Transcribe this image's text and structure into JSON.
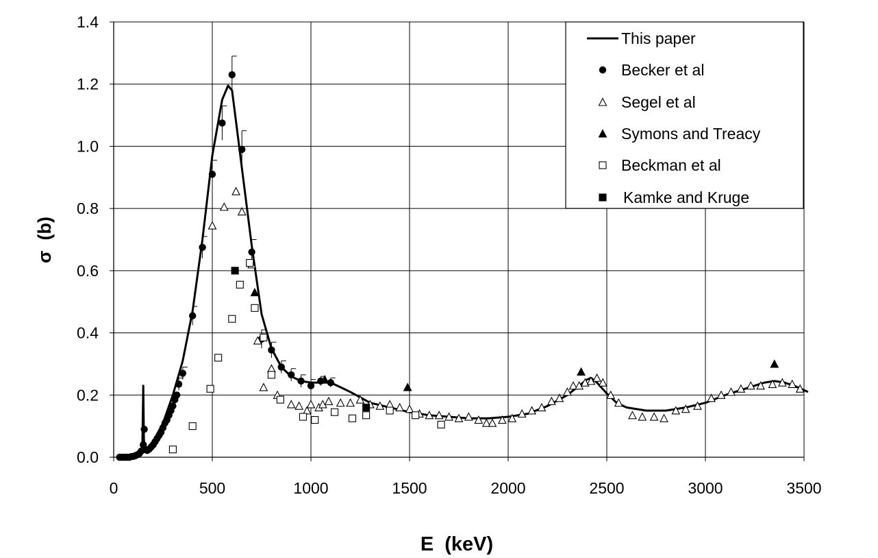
{
  "chart_data": {
    "type": "scatter",
    "title": "",
    "xlabel": "E  (keV)",
    "ylabel": "σ  (b)",
    "xlim": [
      0,
      3500
    ],
    "ylim": [
      0,
      1.4
    ],
    "xticks": [
      0,
      500,
      1000,
      1500,
      2000,
      2500,
      3000,
      3500
    ],
    "xtick_labels": [
      "0",
      "500",
      "1000",
      "1500",
      "2000",
      "2500",
      "3000",
      "3500"
    ],
    "yticks": [
      0,
      0.2,
      0.4,
      0.6,
      0.8,
      1.0,
      1.2,
      1.4
    ],
    "ytick_labels": [
      "0.0",
      "0.2",
      "0.4",
      "0.6",
      "0.8",
      "1.0",
      "1.2",
      "1.4"
    ],
    "grid": true,
    "legend_position": "top-right",
    "series": [
      {
        "name": "This paper",
        "kind": "line",
        "color": "#000000",
        "x": [
          20,
          60,
          100,
          120,
          140,
          145,
          150,
          153,
          156,
          160,
          180,
          200,
          250,
          300,
          350,
          400,
          450,
          500,
          550,
          580,
          600,
          620,
          650,
          700,
          750,
          800,
          850,
          900,
          950,
          1000,
          1050,
          1100,
          1150,
          1200,
          1300,
          1400,
          1500,
          1600,
          1700,
          1800,
          1900,
          2000,
          2100,
          2200,
          2300,
          2350,
          2400,
          2420,
          2450,
          2500,
          2550,
          2600,
          2700,
          2800,
          2900,
          3000,
          3100,
          3200,
          3300,
          3350,
          3400,
          3450,
          3520
        ],
        "y": [
          0.0,
          0.0,
          0.003,
          0.008,
          0.015,
          0.03,
          0.23,
          0.06,
          0.025,
          0.022,
          0.03,
          0.05,
          0.11,
          0.2,
          0.31,
          0.47,
          0.7,
          0.97,
          1.15,
          1.195,
          1.18,
          1.08,
          0.93,
          0.68,
          0.46,
          0.35,
          0.29,
          0.26,
          0.245,
          0.24,
          0.24,
          0.24,
          0.225,
          0.21,
          0.175,
          0.16,
          0.145,
          0.135,
          0.13,
          0.125,
          0.125,
          0.13,
          0.14,
          0.165,
          0.2,
          0.225,
          0.25,
          0.255,
          0.24,
          0.205,
          0.175,
          0.16,
          0.15,
          0.15,
          0.16,
          0.175,
          0.2,
          0.22,
          0.24,
          0.245,
          0.24,
          0.23,
          0.21
        ]
      },
      {
        "name": "Becker et al",
        "kind": "scatter",
        "marker": "filled-circle",
        "color": "#000000",
        "x": [
          30,
          40,
          50,
          60,
          70,
          80,
          90,
          100,
          110,
          120,
          130,
          140,
          150,
          155,
          160,
          170,
          180,
          190,
          200,
          210,
          220,
          230,
          240,
          250,
          260,
          270,
          280,
          290,
          300,
          310,
          320,
          330,
          350,
          400,
          450,
          500,
          550,
          600,
          650,
          700,
          750,
          800,
          850,
          900,
          950,
          1000,
          1050,
          1100
        ],
        "y": [
          0.0,
          0.0,
          0.0,
          0.0,
          0.0,
          0.0,
          0.002,
          0.003,
          0.005,
          0.008,
          0.012,
          0.02,
          0.04,
          0.09,
          0.025,
          0.022,
          0.026,
          0.033,
          0.04,
          0.05,
          0.06,
          0.07,
          0.08,
          0.095,
          0.11,
          0.12,
          0.135,
          0.15,
          0.165,
          0.185,
          0.2,
          0.235,
          0.27,
          0.455,
          0.675,
          0.91,
          1.075,
          1.23,
          0.99,
          0.66,
          0.38,
          0.345,
          0.29,
          0.265,
          0.245,
          0.23,
          0.245,
          0.24
        ],
        "yerr": [
          0,
          0,
          0,
          0,
          0,
          0,
          0,
          0,
          0,
          0,
          0,
          0,
          0,
          0,
          0,
          0,
          0,
          0,
          0,
          0,
          0,
          0,
          0,
          0,
          0,
          0,
          0,
          0,
          0,
          0,
          0,
          0.02,
          0.02,
          0.03,
          0.035,
          0.045,
          0.055,
          0.06,
          0.06,
          0.04,
          0.03,
          0.025,
          0.02,
          0.02,
          0.02,
          0.02,
          0.015,
          0.015
        ]
      },
      {
        "name": "Segel et al",
        "kind": "scatter",
        "marker": "open-triangle",
        "color": "#000000",
        "x": [
          500,
          560,
          620,
          650,
          700,
          730,
          760,
          800,
          830,
          900,
          940,
          980,
          1000,
          1040,
          1060,
          1090,
          1150,
          1200,
          1250,
          1300,
          1350,
          1400,
          1450,
          1500,
          1550,
          1600,
          1650,
          1700,
          1750,
          1800,
          1850,
          1890,
          1920,
          1970,
          2020,
          2070,
          2120,
          2170,
          2220,
          2260,
          2300,
          2330,
          2360,
          2390,
          2420,
          2450,
          2480,
          2520,
          2560,
          2630,
          2680,
          2740,
          2790,
          2850,
          2900,
          2960,
          3030,
          3080,
          3130,
          3180,
          3230,
          3280,
          3340,
          3390,
          3440,
          3480
        ],
        "y": [
          0.745,
          0.805,
          0.855,
          0.79,
          0.62,
          0.375,
          0.225,
          0.285,
          0.2,
          0.17,
          0.165,
          0.15,
          0.17,
          0.16,
          0.17,
          0.18,
          0.175,
          0.175,
          0.185,
          0.17,
          0.165,
          0.17,
          0.16,
          0.155,
          0.14,
          0.135,
          0.135,
          0.13,
          0.125,
          0.13,
          0.12,
          0.11,
          0.11,
          0.12,
          0.125,
          0.14,
          0.15,
          0.16,
          0.18,
          0.19,
          0.21,
          0.23,
          0.23,
          0.24,
          0.245,
          0.255,
          0.24,
          0.2,
          0.175,
          0.135,
          0.13,
          0.13,
          0.125,
          0.15,
          0.155,
          0.165,
          0.19,
          0.2,
          0.21,
          0.22,
          0.23,
          0.23,
          0.235,
          0.24,
          0.235,
          0.22
        ]
      },
      {
        "name": "Symons and Treacy",
        "kind": "scatter",
        "marker": "filled-triangle",
        "color": "#000000",
        "x": [
          715,
          1070,
          1490,
          2370,
          3350
        ],
        "y": [
          0.53,
          0.25,
          0.225,
          0.275,
          0.3
        ]
      },
      {
        "name": "Beckman et al",
        "kind": "scatter",
        "marker": "open-square",
        "color": "#000000",
        "x": [
          300,
          400,
          490,
          530,
          600,
          640,
          690,
          715,
          760,
          800,
          845,
          960,
          1020,
          1120,
          1210,
          1280,
          1400,
          1530,
          1660
        ],
        "y": [
          0.025,
          0.1,
          0.22,
          0.32,
          0.445,
          0.555,
          0.625,
          0.48,
          0.385,
          0.265,
          0.185,
          0.13,
          0.12,
          0.145,
          0.125,
          0.135,
          0.15,
          0.135,
          0.105
        ]
      },
      {
        "name": "Kamke and Kruge",
        "kind": "scatter",
        "marker": "filled-square",
        "color": "#000000",
        "x": [
          615,
          1280
        ],
        "y": [
          0.6,
          0.16
        ]
      }
    ]
  }
}
